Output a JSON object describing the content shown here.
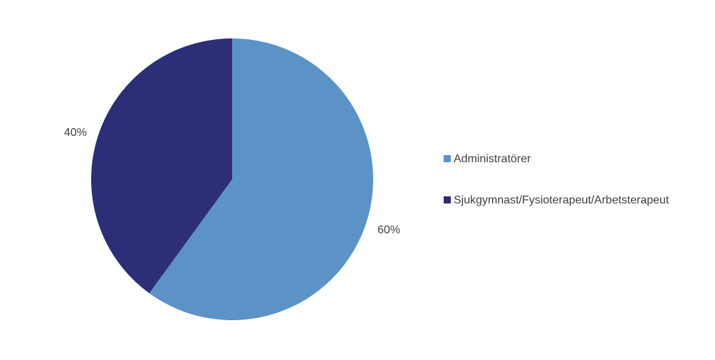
{
  "chart_data": {
    "type": "pie",
    "categories": [
      "Administratörer",
      "Sjukgymnast/Fysioterapeut/Arbetsterapeut"
    ],
    "values": [
      60,
      40
    ],
    "data_labels": [
      "60%",
      "40%"
    ],
    "colors": [
      "#5B93C7",
      "#2C2F77"
    ],
    "legend": {
      "placement": "right",
      "entries": [
        "Administratörer",
        "Sjukgymnast/Fysioterapeut/Arbetsterapeut"
      ]
    },
    "start_angle": "12 o'clock",
    "direction": "clockwise"
  }
}
